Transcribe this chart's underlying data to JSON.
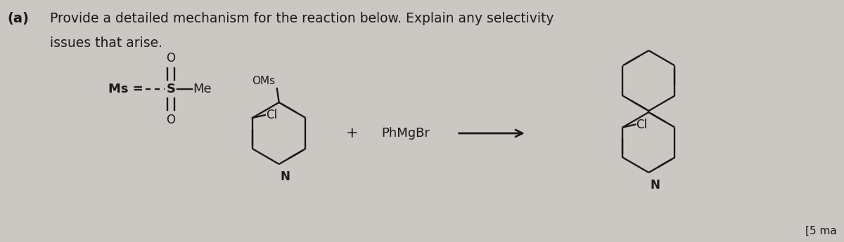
{
  "bg_color": "#cbc8c3",
  "text_color": "#1a1a1a",
  "title_a": "(a)",
  "line1": "Provide a detailed mechanism for the reaction below. Explain any selectivity",
  "line2": "issues that arise.",
  "oms_label": "OMs",
  "cl_label1": "Cl",
  "cl_label2": "Cl",
  "n_label1": "N",
  "n_label2": "N",
  "plus_label": "+",
  "reagent_label": "PhMgBr",
  "footer_text": "[5 ma"
}
